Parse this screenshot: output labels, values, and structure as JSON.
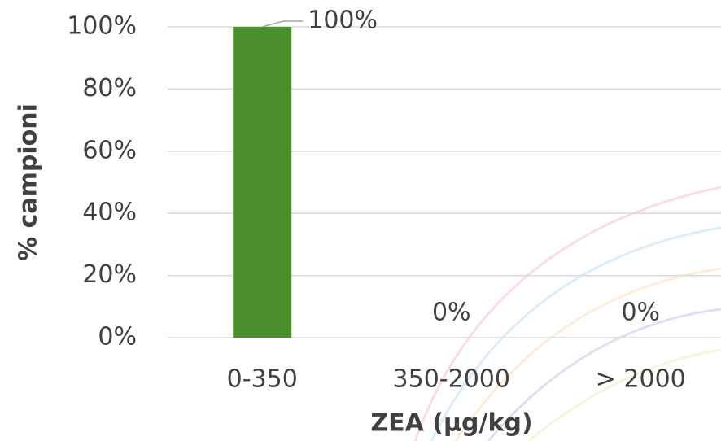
{
  "chart_data": {
    "type": "bar",
    "categories": [
      "0-350",
      "350-2000",
      "> 2000"
    ],
    "values": [
      100,
      0,
      0
    ],
    "value_labels": [
      "100%",
      "0%",
      "0%"
    ],
    "color": "#4a8f2c",
    "ylim": [
      0,
      100
    ],
    "yticks": [
      {
        "value": 0,
        "label": "0%"
      },
      {
        "value": 20,
        "label": "20%"
      },
      {
        "value": 40,
        "label": "40%"
      },
      {
        "value": 60,
        "label": "60%"
      },
      {
        "value": 80,
        "label": "80%"
      },
      {
        "value": 100,
        "label": "100%"
      }
    ],
    "grid": true,
    "y_label": "% campioni",
    "x_label": "ZEA (µg/kg)"
  }
}
